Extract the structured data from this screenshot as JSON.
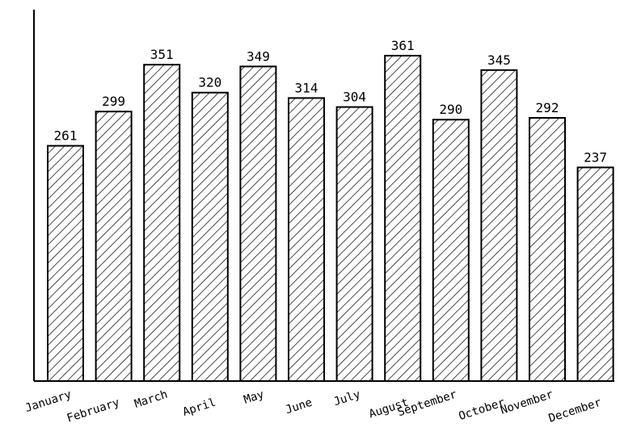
{
  "chart_data": {
    "type": "bar",
    "categories": [
      "January",
      "February",
      "March",
      "April",
      "May",
      "June",
      "July",
      "August",
      "September",
      "October",
      "November",
      "December"
    ],
    "values": [
      261,
      299,
      351,
      320,
      349,
      314,
      304,
      361,
      290,
      345,
      292,
      237
    ],
    "ylim": [
      0,
      412
    ],
    "grid": false,
    "data_labels": true,
    "fill_pattern": "diagonal-hatch",
    "bar_color": "#000000",
    "background": "#ffffff"
  }
}
